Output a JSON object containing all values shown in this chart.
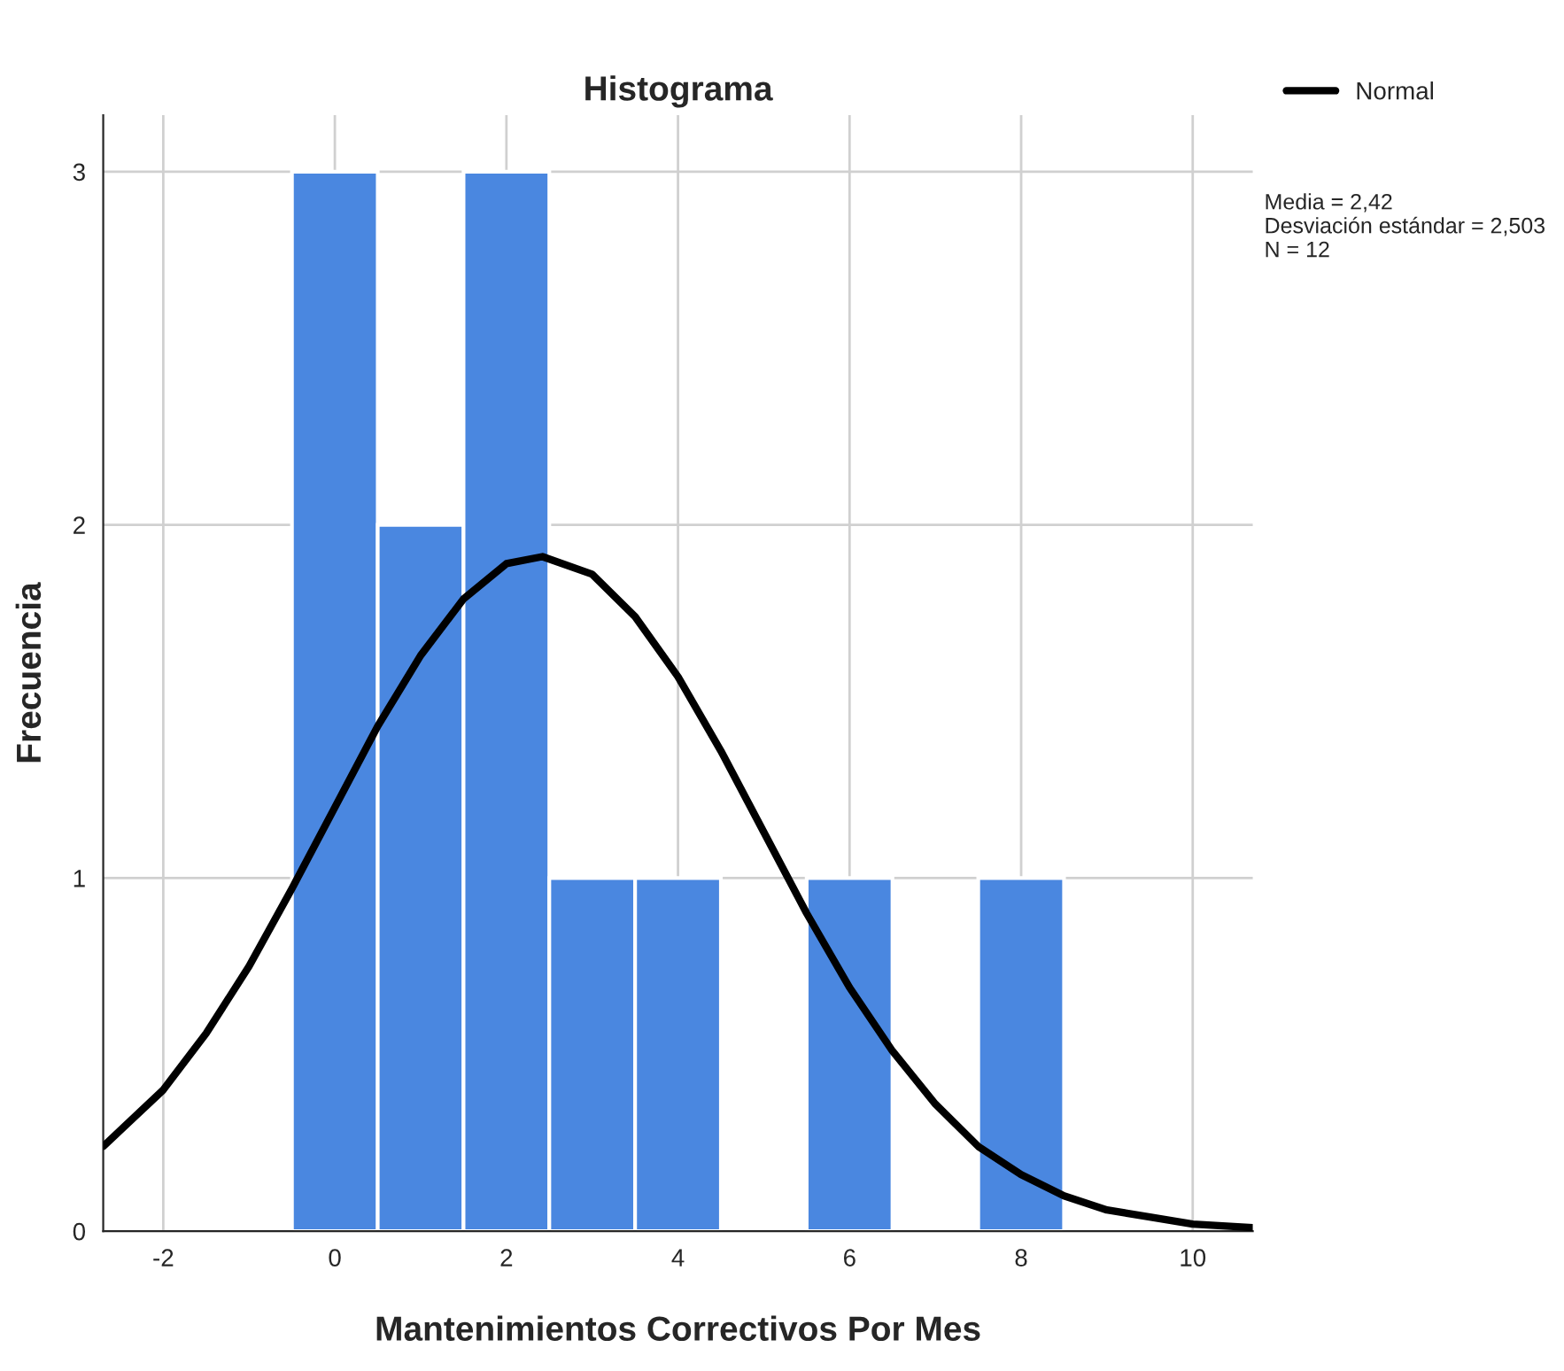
{
  "chart_data": {
    "type": "histogram",
    "title": "Histograma",
    "xlabel": "Mantenimientos Correctivos Por Mes",
    "ylabel": "Frecuencia",
    "bins": [
      -0.5,
      0.5,
      1.5,
      2.5,
      3.5,
      4.5,
      5.5,
      6.5,
      7.5,
      8.5
    ],
    "values": [
      3,
      2,
      3,
      1,
      1,
      0,
      1,
      0,
      1
    ],
    "color": "#4a87e0",
    "series": [
      {
        "name": "Normal",
        "type": "line",
        "color": "#000000",
        "x": [
          -2.7,
          -2,
          -1.5,
          -1,
          -0.5,
          0,
          0.5,
          1,
          1.5,
          2,
          2.42,
          3,
          3.5,
          4,
          4.5,
          5,
          5.5,
          6,
          6.5,
          7,
          7.5,
          8,
          8.5,
          9,
          9.5,
          10,
          10.7
        ],
        "values": [
          0.24,
          0.4,
          0.56,
          0.75,
          0.97,
          1.2,
          1.43,
          1.63,
          1.79,
          1.89,
          1.91,
          1.86,
          1.74,
          1.57,
          1.36,
          1.13,
          0.9,
          0.69,
          0.51,
          0.36,
          0.24,
          0.16,
          0.1,
          0.06,
          0.04,
          0.02,
          0.01
        ]
      }
    ],
    "annotations": [
      "Media = 2,42\nDesviación estándar = 2,503\nN = 12"
    ],
    "xlim": [
      -2.7,
      10.7
    ],
    "ylim": [
      0,
      3.16
    ],
    "xticks": [
      -2,
      0,
      2,
      4,
      6,
      8,
      10
    ],
    "yticks": [
      0,
      1,
      2,
      3
    ],
    "grid": true,
    "legend": "top right"
  }
}
